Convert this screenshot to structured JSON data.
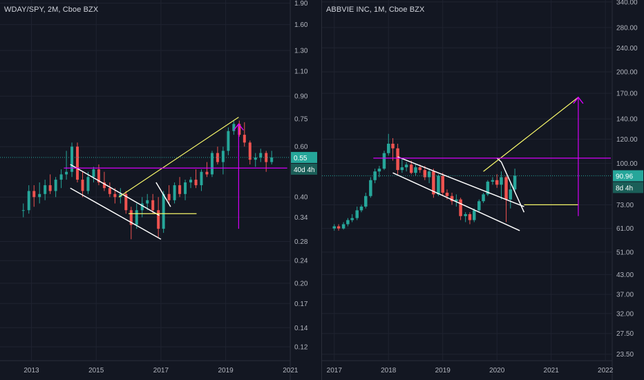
{
  "theme": {
    "background": "#131722",
    "grid": "#1f2330",
    "up": "#26a69a",
    "down": "#ef5350",
    "magenta": "#d500f9",
    "yellow": "#f7f76a",
    "white": "#ffffff",
    "price_line": "#26a69a"
  },
  "chart_data": [
    {
      "type": "candlestick",
      "title": "WDAY/SPY, 2M, Cboe BZX",
      "x_ticks": [
        "2013",
        "2015",
        "2017",
        "2019",
        "2021"
      ],
      "y_ticks": [
        "1.90",
        "1.60",
        "1.30",
        "1.10",
        "0.90",
        "0.75",
        "0.60",
        "0.40",
        "0.34",
        "0.28",
        "0.24",
        "0.20",
        "0.17",
        "0.14",
        "0.12"
      ],
      "ylim": [
        0.108,
        1.95
      ],
      "y_scale": "log",
      "x_range": [
        2012.2,
        2020.95
      ],
      "current_price": 0.55,
      "price_label": "0.55",
      "countdown_label": "40d 4h",
      "candles": [
        {
          "t": 2012.75,
          "o": 0.36,
          "h": 0.38,
          "l": 0.34,
          "c": 0.36
        },
        {
          "t": 2012.92,
          "o": 0.36,
          "h": 0.44,
          "l": 0.35,
          "c": 0.42
        },
        {
          "t": 2013.08,
          "o": 0.42,
          "h": 0.44,
          "l": 0.37,
          "c": 0.4
        },
        {
          "t": 2013.25,
          "o": 0.4,
          "h": 0.45,
          "l": 0.38,
          "c": 0.41
        },
        {
          "t": 2013.42,
          "o": 0.41,
          "h": 0.46,
          "l": 0.39,
          "c": 0.44
        },
        {
          "t": 2013.58,
          "o": 0.44,
          "h": 0.48,
          "l": 0.41,
          "c": 0.42
        },
        {
          "t": 2013.75,
          "o": 0.42,
          "h": 0.47,
          "l": 0.4,
          "c": 0.46
        },
        {
          "t": 2013.92,
          "o": 0.46,
          "h": 0.5,
          "l": 0.43,
          "c": 0.48
        },
        {
          "t": 2014.08,
          "o": 0.48,
          "h": 0.58,
          "l": 0.46,
          "c": 0.49
        },
        {
          "t": 2014.25,
          "o": 0.49,
          "h": 0.62,
          "l": 0.47,
          "c": 0.6
        },
        {
          "t": 2014.42,
          "o": 0.6,
          "h": 0.62,
          "l": 0.45,
          "c": 0.46
        },
        {
          "t": 2014.58,
          "o": 0.46,
          "h": 0.49,
          "l": 0.4,
          "c": 0.42
        },
        {
          "t": 2014.75,
          "o": 0.42,
          "h": 0.49,
          "l": 0.41,
          "c": 0.47
        },
        {
          "t": 2014.92,
          "o": 0.47,
          "h": 0.51,
          "l": 0.45,
          "c": 0.5
        },
        {
          "t": 2015.08,
          "o": 0.5,
          "h": 0.52,
          "l": 0.44,
          "c": 0.45
        },
        {
          "t": 2015.25,
          "o": 0.45,
          "h": 0.49,
          "l": 0.42,
          "c": 0.43
        },
        {
          "t": 2015.42,
          "o": 0.43,
          "h": 0.45,
          "l": 0.4,
          "c": 0.41
        },
        {
          "t": 2015.58,
          "o": 0.41,
          "h": 0.43,
          "l": 0.38,
          "c": 0.4
        },
        {
          "t": 2015.75,
          "o": 0.4,
          "h": 0.43,
          "l": 0.38,
          "c": 0.41
        },
        {
          "t": 2015.92,
          "o": 0.41,
          "h": 0.42,
          "l": 0.35,
          "c": 0.36
        },
        {
          "t": 2016.08,
          "o": 0.36,
          "h": 0.37,
          "l": 0.285,
          "c": 0.32
        },
        {
          "t": 2016.25,
          "o": 0.32,
          "h": 0.38,
          "l": 0.31,
          "c": 0.36
        },
        {
          "t": 2016.42,
          "o": 0.36,
          "h": 0.4,
          "l": 0.34,
          "c": 0.38
        },
        {
          "t": 2016.58,
          "o": 0.38,
          "h": 0.41,
          "l": 0.36,
          "c": 0.39
        },
        {
          "t": 2016.75,
          "o": 0.39,
          "h": 0.41,
          "l": 0.35,
          "c": 0.36
        },
        {
          "t": 2016.92,
          "o": 0.36,
          "h": 0.4,
          "l": 0.29,
          "c": 0.31
        },
        {
          "t": 2017.08,
          "o": 0.31,
          "h": 0.42,
          "l": 0.3,
          "c": 0.41
        },
        {
          "t": 2017.25,
          "o": 0.41,
          "h": 0.44,
          "l": 0.38,
          "c": 0.39
        },
        {
          "t": 2017.42,
          "o": 0.39,
          "h": 0.45,
          "l": 0.38,
          "c": 0.44
        },
        {
          "t": 2017.58,
          "o": 0.44,
          "h": 0.47,
          "l": 0.4,
          "c": 0.41
        },
        {
          "t": 2017.75,
          "o": 0.41,
          "h": 0.46,
          "l": 0.39,
          "c": 0.45
        },
        {
          "t": 2017.92,
          "o": 0.45,
          "h": 0.47,
          "l": 0.43,
          "c": 0.46
        },
        {
          "t": 2018.08,
          "o": 0.46,
          "h": 0.5,
          "l": 0.43,
          "c": 0.44
        },
        {
          "t": 2018.25,
          "o": 0.44,
          "h": 0.5,
          "l": 0.42,
          "c": 0.49
        },
        {
          "t": 2018.42,
          "o": 0.49,
          "h": 0.53,
          "l": 0.47,
          "c": 0.48
        },
        {
          "t": 2018.58,
          "o": 0.48,
          "h": 0.58,
          "l": 0.47,
          "c": 0.57
        },
        {
          "t": 2018.75,
          "o": 0.57,
          "h": 0.6,
          "l": 0.52,
          "c": 0.53
        },
        {
          "t": 2018.92,
          "o": 0.53,
          "h": 0.6,
          "l": 0.48,
          "c": 0.58
        },
        {
          "t": 2019.08,
          "o": 0.58,
          "h": 0.7,
          "l": 0.56,
          "c": 0.68
        },
        {
          "t": 2019.25,
          "o": 0.68,
          "h": 0.74,
          "l": 0.66,
          "c": 0.72
        },
        {
          "t": 2019.42,
          "o": 0.72,
          "h": 0.74,
          "l": 0.65,
          "c": 0.66
        },
        {
          "t": 2019.58,
          "o": 0.66,
          "h": 0.73,
          "l": 0.6,
          "c": 0.62
        },
        {
          "t": 2019.75,
          "o": 0.62,
          "h": 0.63,
          "l": 0.52,
          "c": 0.54
        },
        {
          "t": 2019.92,
          "o": 0.54,
          "h": 0.57,
          "l": 0.51,
          "c": 0.55
        },
        {
          "t": 2020.08,
          "o": 0.55,
          "h": 0.59,
          "l": 0.53,
          "c": 0.57
        },
        {
          "t": 2020.25,
          "o": 0.57,
          "h": 0.58,
          "l": 0.49,
          "c": 0.53
        },
        {
          "t": 2020.42,
          "o": 0.53,
          "h": 0.58,
          "l": 0.52,
          "c": 0.55
        }
      ],
      "annotations": [
        {
          "kind": "line",
          "color": "white",
          "from": [
            2014.2,
            0.52
          ],
          "to": [
            2016.95,
            0.345
          ]
        },
        {
          "kind": "line",
          "color": "white",
          "from": [
            2014.2,
            0.43
          ],
          "to": [
            2017.0,
            0.285
          ]
        },
        {
          "kind": "line",
          "color": "white",
          "from": [
            2016.85,
            0.45
          ],
          "to": [
            2017.3,
            0.37
          ]
        },
        {
          "kind": "line",
          "color": "yellow",
          "from": [
            2015.7,
            0.4
          ],
          "to": [
            2019.4,
            0.76
          ]
        },
        {
          "kind": "line",
          "color": "yellow",
          "from": [
            2016.0,
            0.35
          ],
          "to": [
            2018.1,
            0.35
          ]
        },
        {
          "kind": "line",
          "color": "magenta",
          "from": [
            2014.0,
            0.505
          ],
          "to": [
            2020.9,
            0.505
          ]
        },
        {
          "kind": "line",
          "color": "magenta",
          "from": [
            2019.4,
            0.31
          ],
          "to": [
            2019.4,
            0.72
          ]
        },
        {
          "kind": "arrowhead",
          "color": "magenta",
          "at": [
            2019.4,
            0.72
          ]
        }
      ]
    },
    {
      "type": "candlestick",
      "title": "ABBVIE INC, 1M, Cboe BZX",
      "x_ticks": [
        "2017",
        "2018",
        "2019",
        "2020",
        "2021",
        "2022"
      ],
      "y_ticks": [
        "340.00",
        "280.00",
        "240.00",
        "200.00",
        "170.00",
        "140.00",
        "120.00",
        "100.00",
        "73.00",
        "61.00",
        "51.00",
        "43.00",
        "37.00",
        "32.00",
        "27.50",
        "23.50"
      ],
      "ylim": [
        22.5,
        345
      ],
      "y_scale": "log",
      "x_range": [
        2016.85,
        2022.1
      ],
      "current_price": 90.96,
      "price_label": "90.96",
      "countdown_label": "8d 4h",
      "candles": [
        {
          "t": 2017.0,
          "o": 61,
          "h": 63,
          "l": 60,
          "c": 62
        },
        {
          "t": 2017.08,
          "o": 62,
          "h": 63,
          "l": 60,
          "c": 61
        },
        {
          "t": 2017.17,
          "o": 61,
          "h": 64,
          "l": 60.5,
          "c": 63
        },
        {
          "t": 2017.25,
          "o": 63,
          "h": 66,
          "l": 62,
          "c": 65
        },
        {
          "t": 2017.33,
          "o": 65,
          "h": 68,
          "l": 64,
          "c": 66
        },
        {
          "t": 2017.42,
          "o": 66,
          "h": 72,
          "l": 65,
          "c": 70
        },
        {
          "t": 2017.5,
          "o": 70,
          "h": 73,
          "l": 69,
          "c": 72
        },
        {
          "t": 2017.58,
          "o": 72,
          "h": 80,
          "l": 71,
          "c": 78
        },
        {
          "t": 2017.67,
          "o": 78,
          "h": 90,
          "l": 77,
          "c": 88
        },
        {
          "t": 2017.75,
          "o": 88,
          "h": 96,
          "l": 86,
          "c": 94
        },
        {
          "t": 2017.83,
          "o": 94,
          "h": 98,
          "l": 90,
          "c": 96
        },
        {
          "t": 2017.92,
          "o": 96,
          "h": 110,
          "l": 95,
          "c": 108
        },
        {
          "t": 2018.0,
          "o": 108,
          "h": 125,
          "l": 106,
          "c": 116
        },
        {
          "t": 2018.08,
          "o": 116,
          "h": 121,
          "l": 102,
          "c": 112
        },
        {
          "t": 2018.17,
          "o": 112,
          "h": 116,
          "l": 92,
          "c": 95
        },
        {
          "t": 2018.25,
          "o": 95,
          "h": 104,
          "l": 93,
          "c": 97
        },
        {
          "t": 2018.33,
          "o": 97,
          "h": 101,
          "l": 94,
          "c": 99
        },
        {
          "t": 2018.42,
          "o": 99,
          "h": 102,
          "l": 92,
          "c": 93
        },
        {
          "t": 2018.5,
          "o": 93,
          "h": 99,
          "l": 91,
          "c": 97
        },
        {
          "t": 2018.58,
          "o": 97,
          "h": 99,
          "l": 93,
          "c": 95
        },
        {
          "t": 2018.67,
          "o": 95,
          "h": 98,
          "l": 88,
          "c": 90
        },
        {
          "t": 2018.75,
          "o": 90,
          "h": 96,
          "l": 86,
          "c": 94
        },
        {
          "t": 2018.83,
          "o": 94,
          "h": 96,
          "l": 77,
          "c": 79
        },
        {
          "t": 2018.92,
          "o": 79,
          "h": 92,
          "l": 78,
          "c": 91
        },
        {
          "t": 2019.0,
          "o": 91,
          "h": 93,
          "l": 78,
          "c": 80
        },
        {
          "t": 2019.08,
          "o": 80,
          "h": 82,
          "l": 76,
          "c": 78
        },
        {
          "t": 2019.17,
          "o": 78,
          "h": 80,
          "l": 73,
          "c": 75
        },
        {
          "t": 2019.25,
          "o": 75,
          "h": 79,
          "l": 72,
          "c": 76
        },
        {
          "t": 2019.33,
          "o": 76,
          "h": 77,
          "l": 65,
          "c": 67
        },
        {
          "t": 2019.42,
          "o": 67,
          "h": 69,
          "l": 64,
          "c": 68
        },
        {
          "t": 2019.5,
          "o": 68,
          "h": 69,
          "l": 63,
          "c": 65
        },
        {
          "t": 2019.58,
          "o": 65,
          "h": 71,
          "l": 64,
          "c": 70
        },
        {
          "t": 2019.67,
          "o": 70,
          "h": 76,
          "l": 69,
          "c": 75
        },
        {
          "t": 2019.75,
          "o": 75,
          "h": 80,
          "l": 74,
          "c": 79
        },
        {
          "t": 2019.83,
          "o": 79,
          "h": 88,
          "l": 78,
          "c": 87
        },
        {
          "t": 2019.92,
          "o": 87,
          "h": 90,
          "l": 85,
          "c": 88
        },
        {
          "t": 2020.0,
          "o": 88,
          "h": 92,
          "l": 83,
          "c": 85
        },
        {
          "t": 2020.08,
          "o": 85,
          "h": 94,
          "l": 76,
          "c": 90
        },
        {
          "t": 2020.17,
          "o": 90,
          "h": 91,
          "l": 64,
          "c": 76
        },
        {
          "t": 2020.25,
          "o": 76,
          "h": 86,
          "l": 71,
          "c": 82
        },
        {
          "t": 2020.33,
          "o": 82,
          "h": 96,
          "l": 81,
          "c": 91
        }
      ],
      "annotations": [
        {
          "kind": "line",
          "color": "white",
          "from": [
            2018.17,
            105
          ],
          "to": [
            2020.5,
            72
          ]
        },
        {
          "kind": "line",
          "color": "white",
          "from": [
            2018.08,
            93
          ],
          "to": [
            2020.42,
            60
          ]
        },
        {
          "kind": "line",
          "color": "white",
          "from": [
            2020.08,
            101
          ],
          "to": [
            2020.5,
            69
          ]
        },
        {
          "kind": "line",
          "color": "white",
          "from": [
            2020.08,
            101
          ],
          "to": [
            2020.0,
            104
          ]
        },
        {
          "kind": "line",
          "color": "yellow",
          "from": [
            2019.75,
            94
          ],
          "to": [
            2021.5,
            165
          ]
        },
        {
          "kind": "line",
          "color": "yellow",
          "from": [
            2020.5,
            73
          ],
          "to": [
            2021.5,
            73
          ]
        },
        {
          "kind": "line",
          "color": "magenta",
          "from": [
            2017.72,
            104
          ],
          "to": [
            2022.1,
            104
          ]
        },
        {
          "kind": "line",
          "color": "magenta",
          "from": [
            2021.5,
            67
          ],
          "to": [
            2021.5,
            165
          ]
        },
        {
          "kind": "arrowhead",
          "color": "magenta",
          "at": [
            2021.5,
            165
          ]
        }
      ]
    }
  ]
}
